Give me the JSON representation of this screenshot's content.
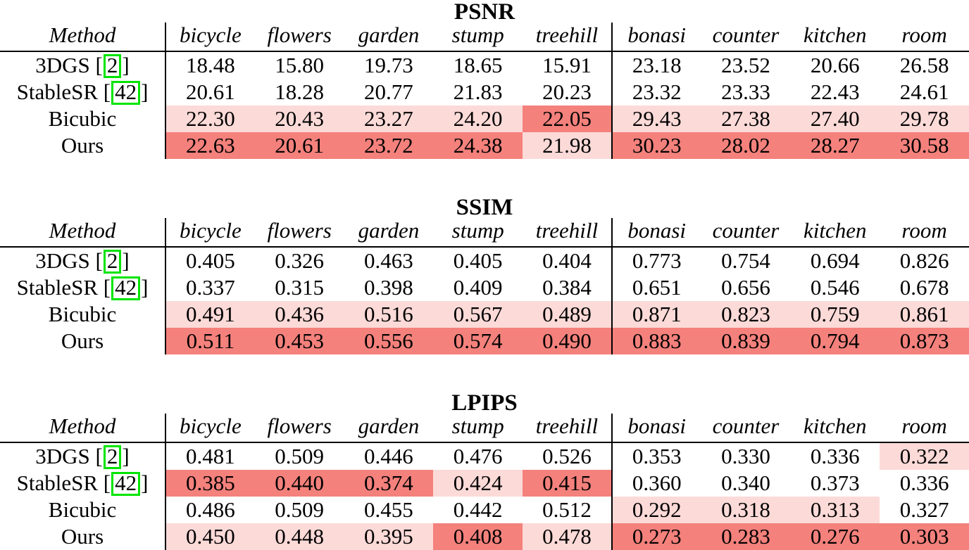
{
  "colors": {
    "best_highlight": "#f4817c",
    "second_highlight": "#fcdad8",
    "cite_link_box": "#00e400",
    "rule": "#000000"
  },
  "tables": [
    {
      "title": "PSNR",
      "method_header": "Method",
      "scene_headers": [
        "bicycle",
        "flowers",
        "garden",
        "stump",
        "treehill",
        "bonasi",
        "counter",
        "kitchen",
        "room"
      ],
      "rows": [
        {
          "method_prefix": "3DGS [",
          "cite": "2",
          "method_suffix": "]",
          "values": [
            "18.48",
            "15.80",
            "19.73",
            "18.65",
            "15.91",
            "23.18",
            "23.52",
            "20.66",
            "26.58"
          ],
          "highlights": [
            "none",
            "none",
            "none",
            "none",
            "none",
            "none",
            "none",
            "none",
            "none"
          ]
        },
        {
          "method_prefix": "StableSR [",
          "cite": "42",
          "method_suffix": "]",
          "values": [
            "20.61",
            "18.28",
            "20.77",
            "21.83",
            "20.23",
            "23.32",
            "23.33",
            "22.43",
            "24.61"
          ],
          "highlights": [
            "none",
            "none",
            "none",
            "none",
            "none",
            "none",
            "none",
            "none",
            "none"
          ]
        },
        {
          "method_prefix": "Bicubic",
          "cite": "",
          "method_suffix": "",
          "values": [
            "22.30",
            "20.43",
            "23.27",
            "24.20",
            "22.05",
            "29.43",
            "27.38",
            "27.40",
            "29.78"
          ],
          "highlights": [
            "second",
            "second",
            "second",
            "second",
            "best",
            "second",
            "second",
            "second",
            "second"
          ]
        },
        {
          "method_prefix": "Ours",
          "cite": "",
          "method_suffix": "",
          "values": [
            "22.63",
            "20.61",
            "23.72",
            "24.38",
            "21.98",
            "30.23",
            "28.02",
            "28.27",
            "30.58"
          ],
          "highlights": [
            "best",
            "best",
            "best",
            "best",
            "second",
            "best",
            "best",
            "best",
            "best"
          ]
        }
      ]
    },
    {
      "title": "SSIM",
      "method_header": "Method",
      "scene_headers": [
        "bicycle",
        "flowers",
        "garden",
        "stump",
        "treehill",
        "bonasi",
        "counter",
        "kitchen",
        "room"
      ],
      "rows": [
        {
          "method_prefix": "3DGS [",
          "cite": "2",
          "method_suffix": "]",
          "values": [
            "0.405",
            "0.326",
            "0.463",
            "0.405",
            "0.404",
            "0.773",
            "0.754",
            "0.694",
            "0.826"
          ],
          "highlights": [
            "none",
            "none",
            "none",
            "none",
            "none",
            "none",
            "none",
            "none",
            "none"
          ]
        },
        {
          "method_prefix": "StableSR [",
          "cite": "42",
          "method_suffix": "]",
          "values": [
            "0.337",
            "0.315",
            "0.398",
            "0.409",
            "0.384",
            "0.651",
            "0.656",
            "0.546",
            "0.678"
          ],
          "highlights": [
            "none",
            "none",
            "none",
            "none",
            "none",
            "none",
            "none",
            "none",
            "none"
          ]
        },
        {
          "method_prefix": "Bicubic",
          "cite": "",
          "method_suffix": "",
          "values": [
            "0.491",
            "0.436",
            "0.516",
            "0.567",
            "0.489",
            "0.871",
            "0.823",
            "0.759",
            "0.861"
          ],
          "highlights": [
            "second",
            "second",
            "second",
            "second",
            "second",
            "second",
            "second",
            "second",
            "second"
          ]
        },
        {
          "method_prefix": "Ours",
          "cite": "",
          "method_suffix": "",
          "values": [
            "0.511",
            "0.453",
            "0.556",
            "0.574",
            "0.490",
            "0.883",
            "0.839",
            "0.794",
            "0.873"
          ],
          "highlights": [
            "best",
            "best",
            "best",
            "best",
            "best",
            "best",
            "best",
            "best",
            "best"
          ]
        }
      ]
    },
    {
      "title": "LPIPS",
      "method_header": "Method",
      "scene_headers": [
        "bicycle",
        "flowers",
        "garden",
        "stump",
        "treehill",
        "bonasi",
        "counter",
        "kitchen",
        "room"
      ],
      "rows": [
        {
          "method_prefix": "3DGS [",
          "cite": "2",
          "method_suffix": "]",
          "values": [
            "0.481",
            "0.509",
            "0.446",
            "0.476",
            "0.526",
            "0.353",
            "0.330",
            "0.336",
            "0.322"
          ],
          "highlights": [
            "none",
            "none",
            "none",
            "none",
            "none",
            "none",
            "none",
            "none",
            "second"
          ]
        },
        {
          "method_prefix": "StableSR [",
          "cite": "42",
          "method_suffix": "]",
          "values": [
            "0.385",
            "0.440",
            "0.374",
            "0.424",
            "0.415",
            "0.360",
            "0.340",
            "0.373",
            "0.336"
          ],
          "highlights": [
            "best",
            "best",
            "best",
            "second",
            "best",
            "none",
            "none",
            "none",
            "none"
          ]
        },
        {
          "method_prefix": "Bicubic",
          "cite": "",
          "method_suffix": "",
          "values": [
            "0.486",
            "0.509",
            "0.455",
            "0.442",
            "0.512",
            "0.292",
            "0.318",
            "0.313",
            "0.327"
          ],
          "highlights": [
            "none",
            "none",
            "none",
            "none",
            "none",
            "second",
            "second",
            "second",
            "none"
          ]
        },
        {
          "method_prefix": "Ours",
          "cite": "",
          "method_suffix": "",
          "values": [
            "0.450",
            "0.448",
            "0.395",
            "0.408",
            "0.478",
            "0.273",
            "0.283",
            "0.276",
            "0.303"
          ],
          "highlights": [
            "second",
            "second",
            "second",
            "best",
            "second",
            "best",
            "best",
            "best",
            "best"
          ]
        }
      ]
    }
  ]
}
